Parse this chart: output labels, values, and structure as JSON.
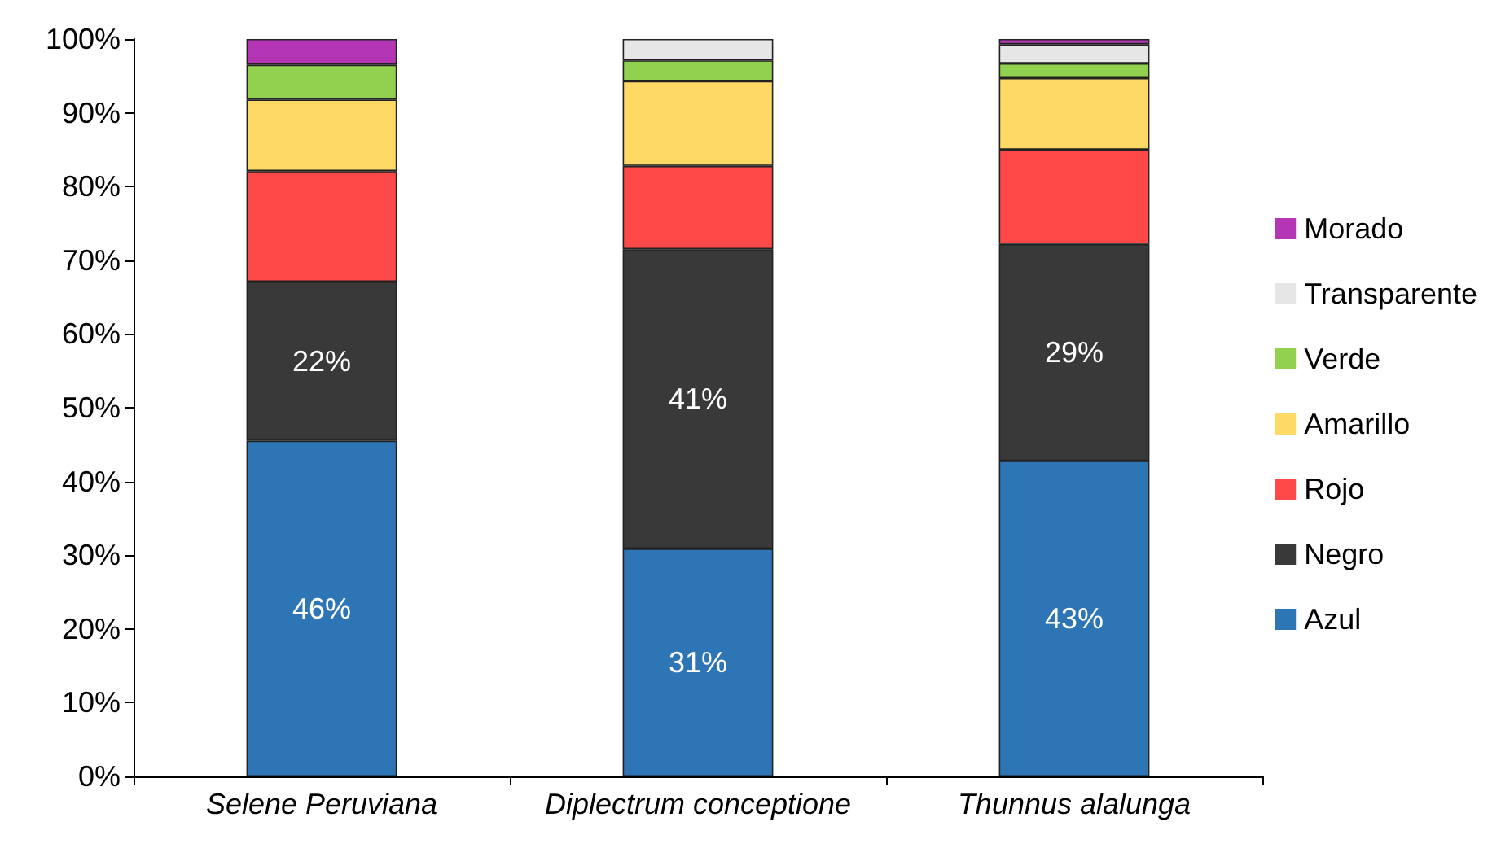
{
  "chart_data": {
    "type": "bar",
    "stacked": true,
    "categories": [
      "Selene Peruviana",
      "Diplectrum conceptione",
      "Thunnus alalunga"
    ],
    "series": [
      {
        "name": "Azul",
        "color": "#2e75b6",
        "values": [
          45.5,
          30.9,
          42.8
        ],
        "value_labels": [
          "46%",
          "31%",
          "43%"
        ]
      },
      {
        "name": "Negro",
        "color": "#393939",
        "values": [
          21.6,
          40.6,
          29.4
        ],
        "value_labels": [
          "22%",
          "41%",
          "29%"
        ]
      },
      {
        "name": "Rojo",
        "color": "#ff4848",
        "values": [
          15.0,
          11.3,
          12.8
        ]
      },
      {
        "name": "Amarillo",
        "color": "#ffd966",
        "values": [
          9.7,
          11.5,
          9.7
        ]
      },
      {
        "name": "Verde",
        "color": "#92d050",
        "values": [
          4.7,
          2.8,
          2.0
        ]
      },
      {
        "name": "Transparente",
        "color": "#e6e6e6",
        "values": [
          0,
          2.9,
          2.6
        ]
      },
      {
        "name": "Morado",
        "color": "#b436b4",
        "values": [
          3.5,
          0,
          0.7
        ]
      }
    ],
    "ylim": [
      0,
      100
    ],
    "yticks": [
      {
        "value": 0,
        "label": "0%"
      },
      {
        "value": 10,
        "label": "10%"
      },
      {
        "value": 20,
        "label": "20%"
      },
      {
        "value": 30,
        "label": "30%"
      },
      {
        "value": 40,
        "label": "40%"
      },
      {
        "value": 50,
        "label": "50%"
      },
      {
        "value": 60,
        "label": "60%"
      },
      {
        "value": 70,
        "label": "70%"
      },
      {
        "value": 80,
        "label": "80%"
      },
      {
        "value": 90,
        "label": "90%"
      },
      {
        "value": 100,
        "label": "100%"
      }
    ],
    "grid": false,
    "legend": "right"
  }
}
